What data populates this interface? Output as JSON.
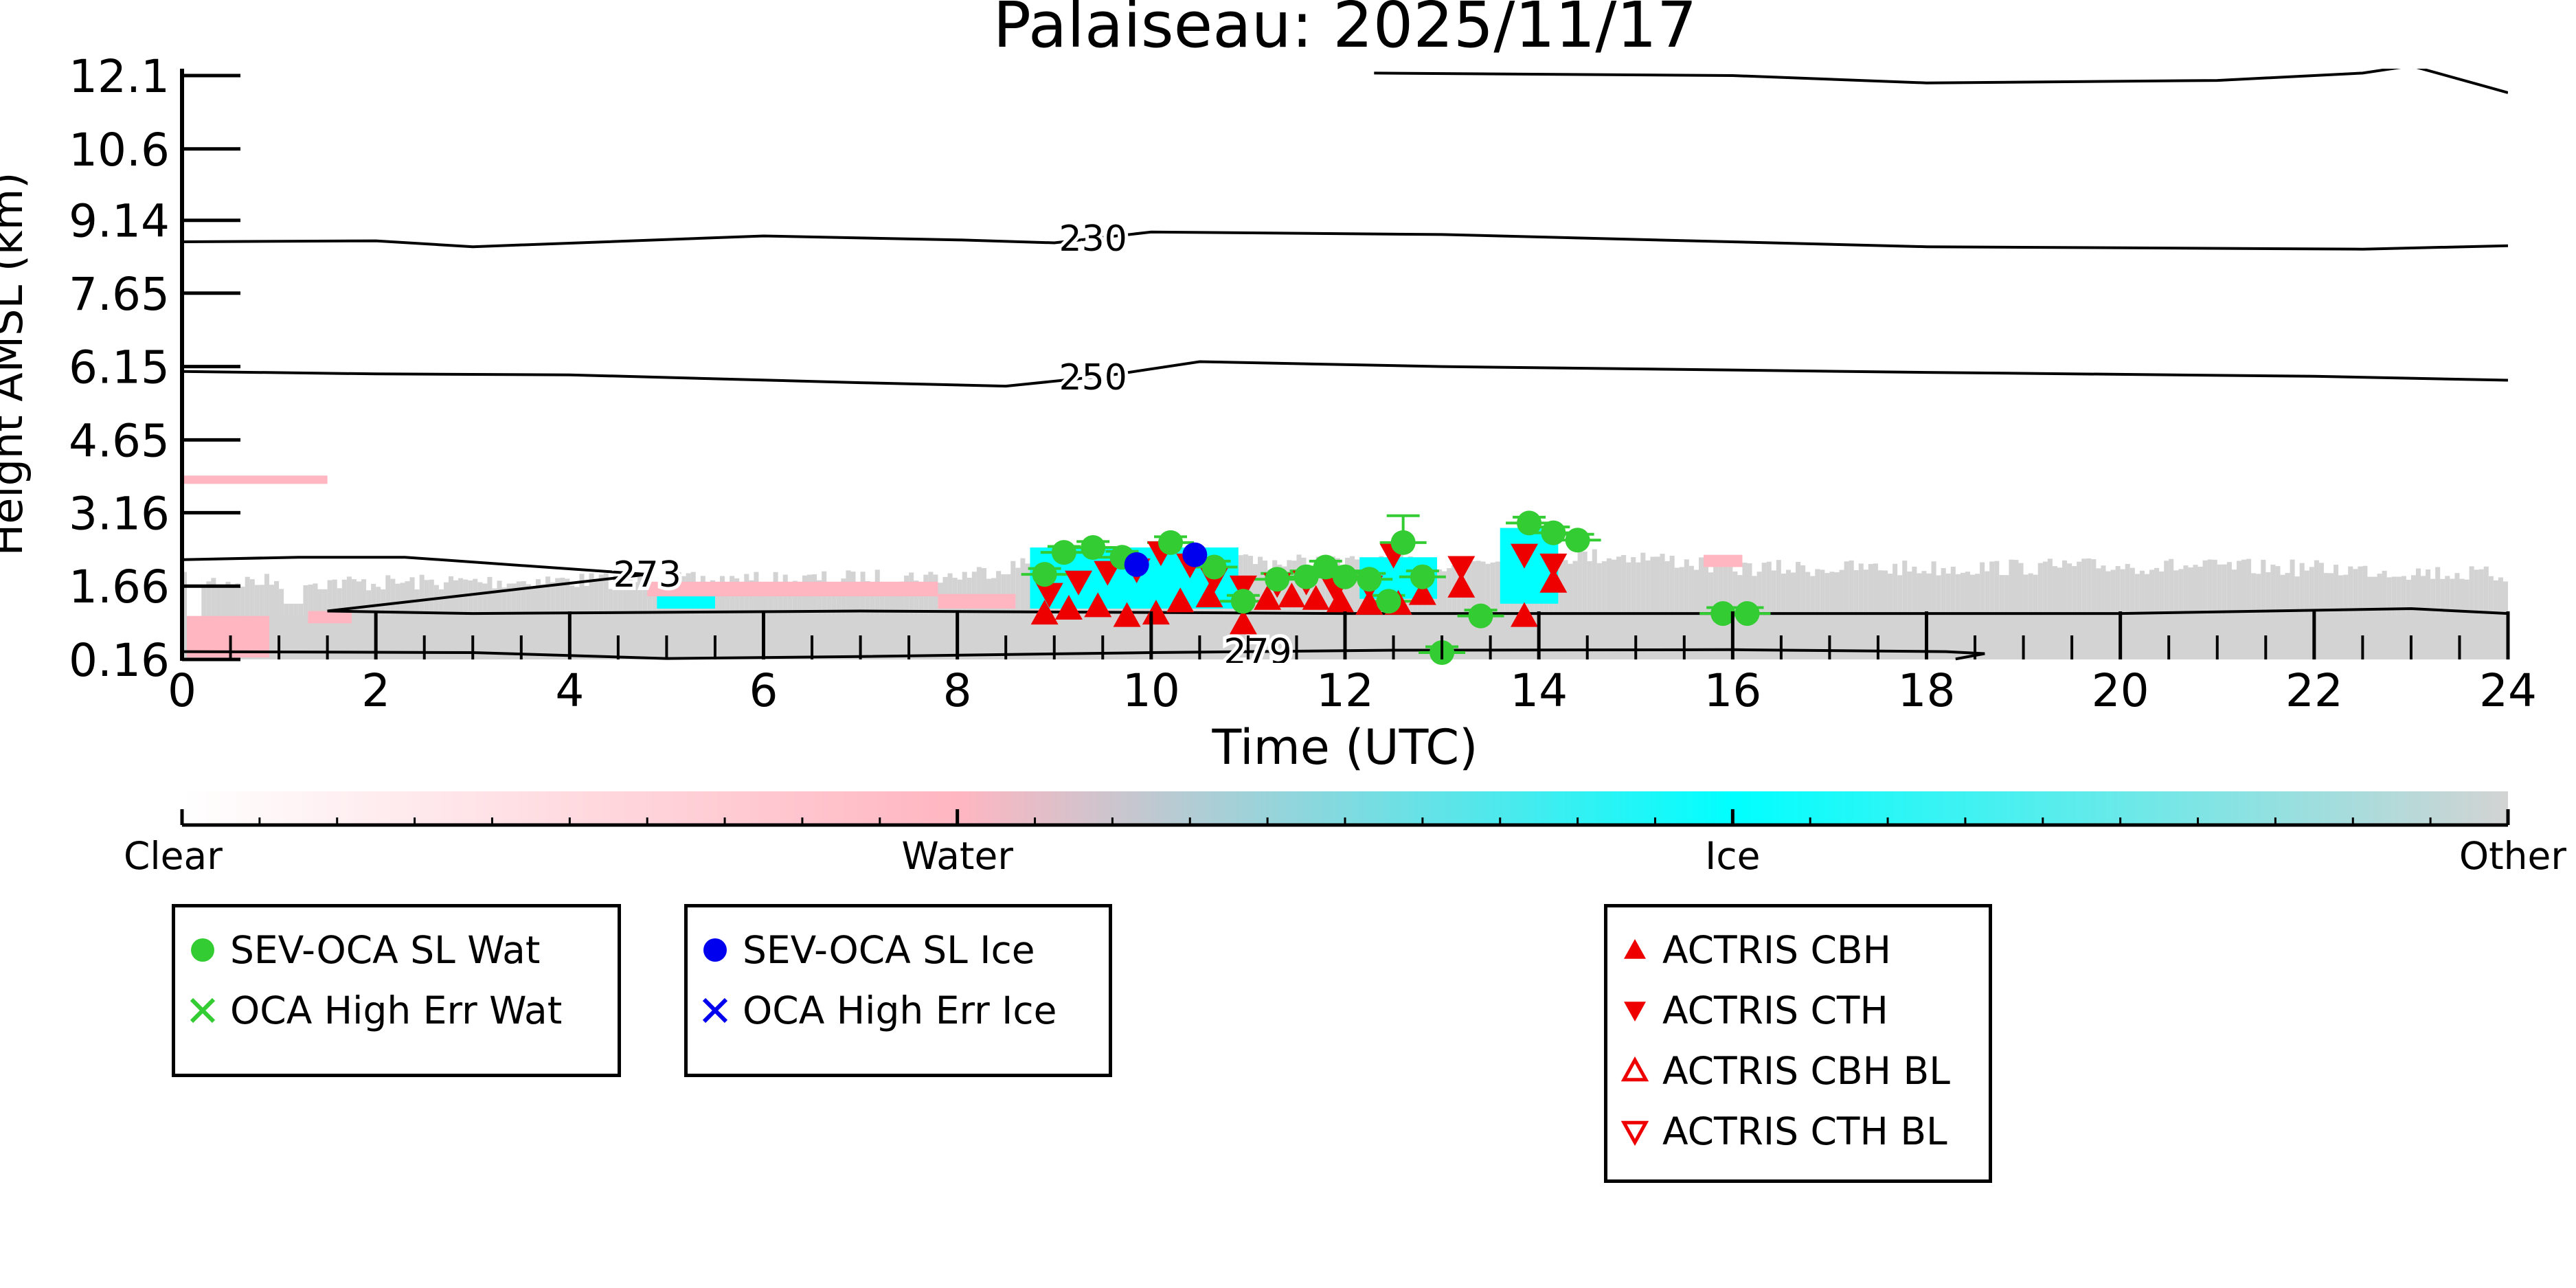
{
  "chart_data": {
    "type": "heatmap",
    "title": "Palaiseau: 2025/11/17",
    "xlabel": "Time (UTC)",
    "ylabel": "Height AMSL (km)",
    "xlim": [
      0,
      24
    ],
    "ylim": [
      0.16,
      12.1
    ],
    "x_ticks": [
      0,
      2,
      4,
      6,
      8,
      10,
      12,
      14,
      16,
      18,
      20,
      22,
      24
    ],
    "y_ticks": [
      "0.16",
      "1.66",
      "3.16",
      "4.65",
      "6.15",
      "7.65",
      "9.14",
      "10.6",
      "12.1"
    ],
    "colorbar": {
      "categories": [
        "Clear",
        "Water",
        "Ice",
        "Other"
      ],
      "colors": [
        "#ffffff",
        "#ffb6c1",
        "#00ffff",
        "#d3d3d3"
      ]
    },
    "temperature_contours": [
      {
        "label": "230",
        "label_x": 9.4,
        "points": [
          [
            0,
            8.7
          ],
          [
            2,
            8.72
          ],
          [
            3,
            8.6
          ],
          [
            6,
            8.82
          ],
          [
            8,
            8.74
          ],
          [
            9,
            8.68
          ],
          [
            10,
            8.9
          ],
          [
            13,
            8.85
          ],
          [
            18,
            8.6
          ],
          [
            22.5,
            8.55
          ],
          [
            24,
            8.62
          ]
        ]
      },
      {
        "label": "250",
        "label_x": 9.4,
        "points": [
          [
            0,
            6.05
          ],
          [
            2,
            6.0
          ],
          [
            4,
            5.98
          ],
          [
            7,
            5.82
          ],
          [
            8.5,
            5.75
          ],
          [
            9.5,
            5.95
          ],
          [
            10.5,
            6.25
          ],
          [
            13,
            6.15
          ],
          [
            18,
            6.03
          ],
          [
            22,
            5.95
          ],
          [
            24,
            5.87
          ]
        ]
      },
      {
        "label": "273",
        "label_x": 4.8,
        "points": [
          [
            0,
            2.2
          ],
          [
            1.2,
            2.25
          ],
          [
            2.3,
            2.25
          ],
          [
            4.8,
            1.9
          ],
          [
            1.5,
            1.15
          ],
          [
            3,
            1.1
          ],
          [
            7,
            1.15
          ],
          [
            12,
            1.1
          ],
          [
            20,
            1.1
          ],
          [
            23,
            1.2
          ],
          [
            24,
            1.1
          ]
        ]
      },
      {
        "label": "279",
        "label_x": 11.1,
        "points": [
          [
            0,
            0.32
          ],
          [
            3,
            0.3
          ],
          [
            5,
            0.18
          ],
          [
            7,
            0.22
          ],
          [
            10,
            0.3
          ],
          [
            12.5,
            0.35
          ],
          [
            16,
            0.36
          ],
          [
            18.2,
            0.32
          ],
          [
            18.6,
            0.28
          ],
          [
            18.3,
            0.17
          ]
        ]
      },
      {
        "label": "",
        "points": [
          [
            12.3,
            12.15
          ],
          [
            16,
            12.1
          ],
          [
            18,
            11.95
          ],
          [
            21,
            12.0
          ],
          [
            22.5,
            12.15
          ],
          [
            23,
            12.3
          ],
          [
            24,
            11.75
          ]
        ]
      }
    ],
    "series": [
      {
        "name": "SEV-OCA SL Wat",
        "color": "#33cc33",
        "marker": "circle",
        "x": [
          8.9,
          9.1,
          9.4,
          9.7,
          10.2,
          10.65,
          10.95,
          11.3,
          11.6,
          11.8,
          12.0,
          12.25,
          12.45,
          12.6,
          12.8,
          13.0,
          13.4,
          13.9,
          14.15,
          14.4,
          15.9,
          16.15
        ],
        "y": [
          1.9,
          2.35,
          2.45,
          2.25,
          2.55,
          2.05,
          1.35,
          1.8,
          1.85,
          2.05,
          1.85,
          1.8,
          1.35,
          2.55,
          1.85,
          0.3,
          1.05,
          2.95,
          2.75,
          2.6,
          1.1,
          1.1
        ]
      },
      {
        "name": "OCA High Err Wat",
        "color": "#33cc33",
        "marker": "x",
        "x": [],
        "y": []
      },
      {
        "name": "SEV-OCA SL Ice",
        "color": "#0000ee",
        "marker": "circle",
        "x": [
          9.85,
          10.45
        ],
        "y": [
          2.1,
          2.3
        ]
      },
      {
        "name": "OCA High Err Ice",
        "color": "#0000ee",
        "marker": "x",
        "x": [],
        "y": []
      },
      {
        "name": "ACTRIS CBH",
        "color": "#ee0000",
        "marker": "triangle-up",
        "x": [
          8.9,
          9.15,
          9.45,
          9.75,
          10.05,
          10.3,
          10.6,
          10.95,
          11.2,
          11.45,
          11.7,
          11.95,
          12.25,
          12.55,
          12.8,
          13.2,
          13.85,
          14.15
        ],
        "y": [
          1.1,
          1.2,
          1.25,
          1.05,
          1.1,
          1.35,
          1.45,
          0.9,
          1.4,
          1.45,
          1.4,
          1.35,
          1.3,
          1.3,
          1.5,
          1.65,
          1.05,
          1.75
        ]
      },
      {
        "name": "ACTRIS CTH",
        "color": "#ee0000",
        "marker": "triangle-down",
        "x": [
          8.95,
          9.25,
          9.55,
          9.85,
          10.1,
          10.4,
          10.65,
          10.95,
          11.3,
          11.6,
          11.9,
          12.25,
          12.5,
          13.2,
          13.85,
          14.15
        ],
        "y": [
          1.5,
          1.75,
          1.95,
          2.0,
          2.35,
          2.1,
          1.8,
          1.65,
          1.7,
          1.75,
          1.6,
          1.65,
          2.3,
          2.05,
          2.3,
          2.1
        ]
      },
      {
        "name": "ACTRIS CBH BL",
        "color": "#ee0000",
        "marker": "triangle-up-open",
        "x": [],
        "y": []
      },
      {
        "name": "ACTRIS CTH BL",
        "color": "#ee0000",
        "marker": "triangle-down-open",
        "x": [],
        "y": []
      }
    ],
    "legend_groups": [
      [
        "SEV-OCA SL Wat",
        "OCA High Err Wat"
      ],
      [
        "SEV-OCA SL Ice",
        "OCA High Err Ice"
      ],
      [
        "ACTRIS CBH",
        "ACTRIS CTH",
        "ACTRIS CBH BL",
        "ACTRIS CTH BL"
      ]
    ],
    "legend_placement": "below",
    "grid": false
  }
}
